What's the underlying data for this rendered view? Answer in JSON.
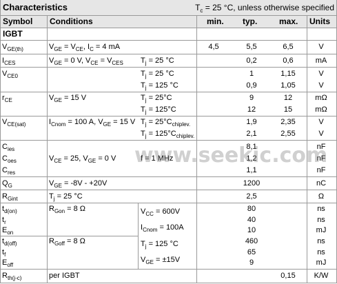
{
  "header": {
    "title": "Characteristics",
    "condition": [
      "T",
      "c",
      " = 25 °C, unless otherwise specified"
    ]
  },
  "columns": [
    "Symbol",
    "Conditions",
    "min.",
    "typ.",
    "max.",
    "Units"
  ],
  "section": "IGBT",
  "rows": [
    {
      "symbol": [
        [
          "V",
          "GE(th)"
        ]
      ],
      "cond": [
        [
          "V",
          "GE",
          " = V",
          "CE",
          ", I",
          "C",
          " = 4 mA"
        ]
      ],
      "cond2": [],
      "min": [
        "4,5"
      ],
      "typ": [
        "5,5"
      ],
      "max": [
        "6,5"
      ],
      "unit": [
        "V"
      ]
    },
    {
      "symbol": [
        [
          "I",
          "CES"
        ]
      ],
      "cond": [
        [
          "V",
          "GE",
          " = 0 V, V",
          "CE",
          " = V",
          "CES"
        ]
      ],
      "cond2": [
        [
          "T",
          "j",
          " = 25 °C"
        ]
      ],
      "min": [],
      "typ": [
        "0,2"
      ],
      "max": [
        "0,6"
      ],
      "unit": [
        "mA"
      ]
    },
    {
      "symbol": [
        [
          "V",
          "CE0"
        ],
        null
      ],
      "cond": [],
      "cond2": [
        [
          "T",
          "j",
          " = 25 °C"
        ],
        [
          "T",
          "j",
          " = 125 °C"
        ]
      ],
      "min": [],
      "typ": [
        "1",
        "0,9"
      ],
      "max": [
        "1,15",
        "1,05"
      ],
      "unit": [
        "V",
        "V"
      ]
    },
    {
      "symbol": [
        [
          "r",
          "CE"
        ],
        null
      ],
      "cond": [
        [
          "V",
          "GE",
          " = 15 V"
        ],
        null
      ],
      "cond2": [
        [
          "T",
          "j",
          " = 25°C"
        ],
        [
          "T",
          "j",
          " = 125°C"
        ]
      ],
      "min": [],
      "typ": [
        "9",
        "12"
      ],
      "max": [
        "12",
        "15"
      ],
      "unit": [
        "mΩ",
        "mΩ"
      ]
    },
    {
      "symbol": [
        [
          "V",
          "CE(sat)"
        ],
        null
      ],
      "cond": [
        [
          "I",
          "Cnom",
          " = 100 A, V",
          "GE",
          " = 15 V"
        ],
        null
      ],
      "cond2": [
        [
          "T",
          "j",
          " = 25°C",
          "chiplev."
        ],
        [
          "T",
          "j",
          " = 125°C",
          "chiplev."
        ]
      ],
      "min": [],
      "typ": [
        "1,9",
        "2,1"
      ],
      "max": [
        "2,35",
        "2,55"
      ],
      "unit": [
        "V",
        "V"
      ]
    },
    {
      "symbol": [
        [
          "C",
          "ies"
        ],
        [
          "C",
          "oes"
        ],
        [
          "C",
          "res"
        ]
      ],
      "cond": [
        null,
        [
          "V",
          "CE",
          " = 25, V",
          "GE",
          " = 0 V"
        ],
        null
      ],
      "cond2": [
        null,
        [
          "f = 1 MHz"
        ],
        null
      ],
      "min": [],
      "typ": [
        "8,1",
        "1,2",
        "1,1"
      ],
      "max": [],
      "unit": [
        "nF",
        "nF",
        "nF"
      ]
    },
    {
      "symbol": [
        [
          "Q",
          "G"
        ]
      ],
      "cond": [
        [
          "V",
          "GE",
          " = -8V - +20V"
        ]
      ],
      "cond2": [],
      "min": [],
      "typ": [
        "1200"
      ],
      "max": [],
      "unit": [
        "nC"
      ]
    },
    {
      "symbol": [
        [
          "R",
          "Gint"
        ]
      ],
      "cond": [
        [
          "T",
          "j",
          " = 25 °C"
        ]
      ],
      "cond2": [],
      "min": [],
      "typ": [
        "2,5"
      ],
      "max": [],
      "unit": [
        "Ω"
      ]
    },
    {
      "symbol": [
        [
          "t",
          "d(on)"
        ],
        [
          "t",
          "r"
        ],
        [
          "E",
          "on"
        ],
        [
          "t",
          "d(off)"
        ],
        [
          "t",
          "f"
        ],
        [
          "E",
          "off"
        ]
      ],
      "cond": [
        [
          "R",
          "Gon",
          " = 8 Ω"
        ],
        null,
        null,
        [
          "R",
          "Goff",
          " = 8 Ω"
        ],
        null,
        null
      ],
      "cond2": [
        [
          "V",
          "CC",
          " = 600V"
        ],
        [
          "I",
          "Cnom",
          " = 100A"
        ],
        [
          "T",
          "j",
          " = 125 °C"
        ],
        [
          "V",
          "GE",
          " = ±15V"
        ]
      ],
      "min": [],
      "typ": [
        "80",
        "40",
        "10",
        "460",
        "65",
        "9"
      ],
      "max": [],
      "unit": [
        "ns",
        "ns",
        "mJ",
        "ns",
        "ns",
        "mJ"
      ]
    },
    {
      "symbol": [
        [
          "R",
          "th(j-c)"
        ]
      ],
      "cond": [
        [
          "per IGBT"
        ]
      ],
      "cond2": [],
      "min": [],
      "typ": [],
      "max": [
        "0,15"
      ],
      "unit": [
        "K/W"
      ]
    }
  ],
  "watermark": "www.seekic.com"
}
